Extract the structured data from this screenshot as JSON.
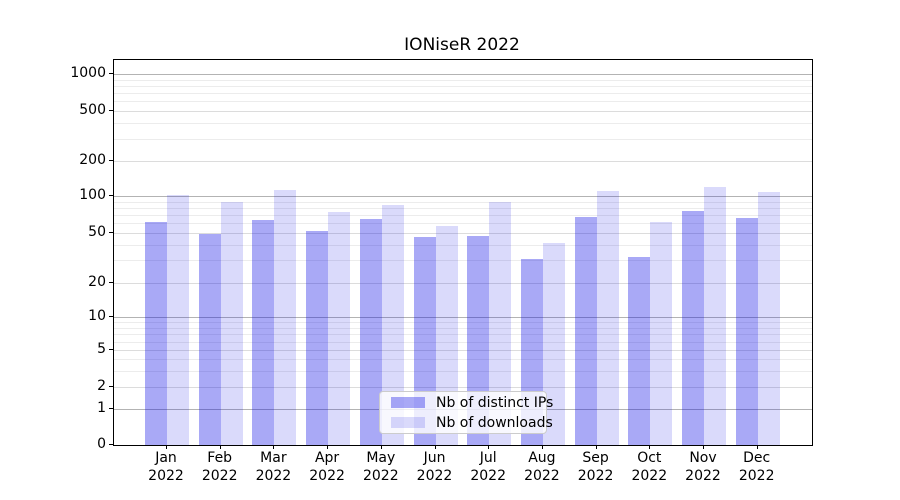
{
  "chart_data": {
    "type": "bar",
    "title": "IONiseR 2022",
    "categories": [
      "Jan 2022",
      "Feb 2022",
      "Mar 2022",
      "Apr 2022",
      "May 2022",
      "Jun 2022",
      "Jul 2022",
      "Aug 2022",
      "Sep 2022",
      "Oct 2022",
      "Nov 2022",
      "Dec 2022"
    ],
    "series": [
      {
        "name": "Nb of distinct IPs",
        "color": "#a9a9f4",
        "values": [
          61,
          49,
          63,
          51,
          65,
          46,
          47,
          31,
          67,
          32,
          75,
          66
        ]
      },
      {
        "name": "Nb of downloads",
        "color": "#dbdbf8",
        "values": [
          102,
          89,
          112,
          74,
          84,
          57,
          90,
          41,
          110,
          61,
          120,
          108
        ]
      }
    ],
    "xlabel": "",
    "ylabel": "",
    "yscale": "symlog",
    "yticks": [
      0,
      1,
      2,
      5,
      10,
      20,
      50,
      100,
      200,
      500,
      1000
    ],
    "minor_gridlines": [
      3,
      4,
      6,
      7,
      8,
      9,
      30,
      40,
      60,
      70,
      80,
      90,
      300,
      400,
      600,
      700,
      800,
      900
    ],
    "ylim": [
      0,
      1300
    ],
    "grid": "horizontal major and minor, light gray",
    "legend": {
      "position": "lower center",
      "entries": [
        "Nb of distinct IPs",
        "Nb of downloads"
      ]
    },
    "colors": {
      "bar_dark": "#a9a9f4",
      "bar_light": "#dbdbf8",
      "grid_major": "#b3b3b3",
      "grid_minor": "#ececec",
      "spine": "#000000"
    }
  }
}
